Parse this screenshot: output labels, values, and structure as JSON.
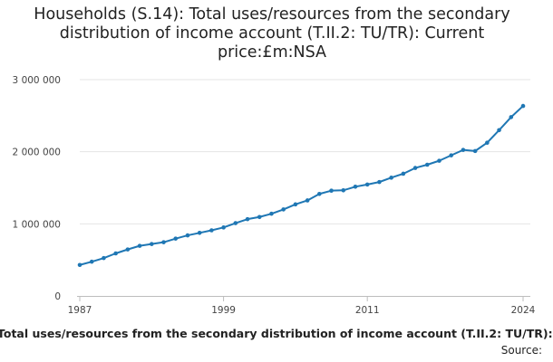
{
  "title_lines": [
    "Households (S.14): Total uses/resources from the secondary",
    "distribution of income account (T.II.2: TU/TR): Current",
    "price:£m:NSA"
  ],
  "footer": {
    "series_label": "Total uses/resources from the secondary distribution of income account (T.II.2: TU/TR):",
    "source_label": "Source:"
  },
  "chart_data": {
    "type": "line",
    "title": "Households (S.14): Total uses/resources from the secondary distribution of income account (T.II.2: TU/TR): Current price:£m:NSA",
    "xlabel": "",
    "ylabel": "",
    "x": [
      1987,
      1988,
      1989,
      1990,
      1991,
      1992,
      1993,
      1994,
      1995,
      1996,
      1997,
      1998,
      1999,
      2000,
      2001,
      2002,
      2003,
      2004,
      2005,
      2006,
      2007,
      2008,
      2009,
      2010,
      2011,
      2012,
      2013,
      2014,
      2015,
      2016,
      2017,
      2018,
      2019,
      2020,
      2021,
      2022,
      2023,
      2024
    ],
    "series": [
      {
        "name": "",
        "color": "#1f77b4",
        "values": [
          430000,
          475000,
          525000,
          590000,
          645000,
          695000,
          720000,
          745000,
          795000,
          840000,
          875000,
          910000,
          950000,
          1010000,
          1065000,
          1095000,
          1140000,
          1200000,
          1270000,
          1325000,
          1415000,
          1460000,
          1465000,
          1515000,
          1545000,
          1580000,
          1640000,
          1695000,
          1775000,
          1820000,
          1875000,
          1950000,
          2025000,
          2010000,
          2125000,
          2300000,
          2480000,
          2635000
        ]
      }
    ],
    "xlim": [
      1987,
      2024
    ],
    "ylim": [
      0,
      3000000
    ],
    "xticks": [
      1987,
      1999,
      2011,
      2024
    ],
    "yticks": [
      0,
      1000000,
      2000000,
      3000000
    ],
    "ytick_labels": [
      "0",
      "1 000 000",
      "2 000 000",
      "3 000 000"
    ],
    "grid": true,
    "legend": "none"
  }
}
